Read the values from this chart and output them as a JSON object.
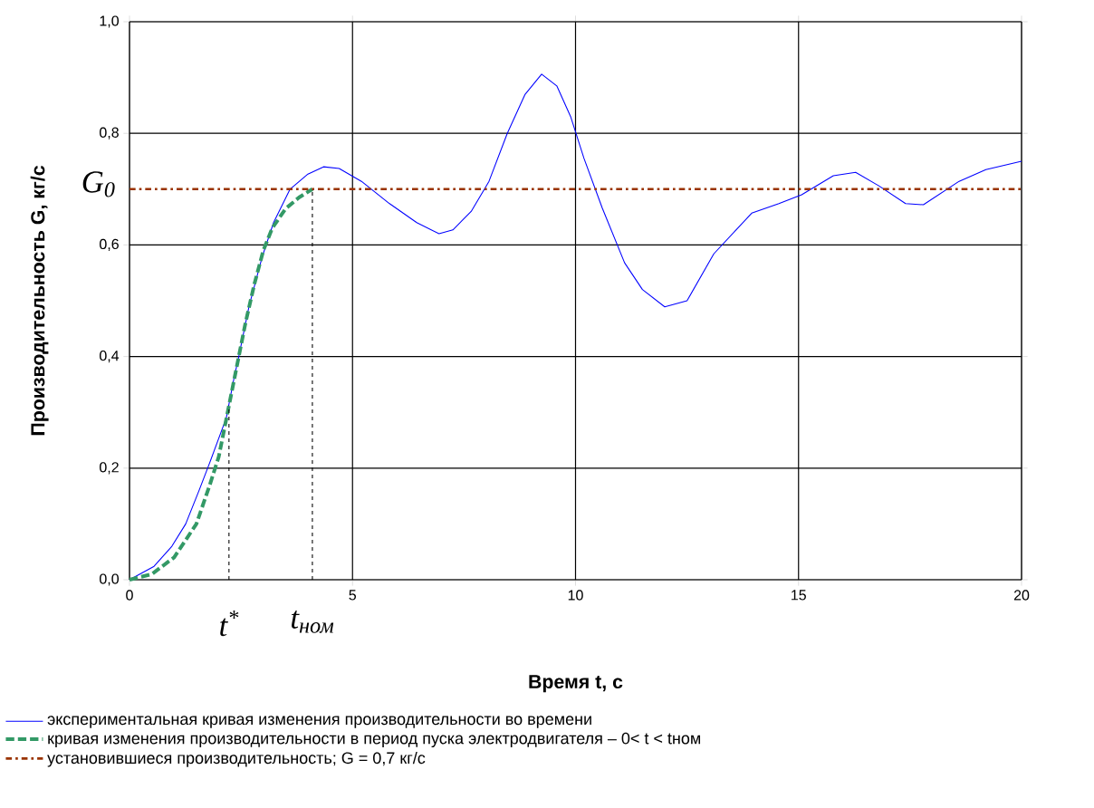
{
  "chart_data": {
    "type": "line",
    "xlabel": "Время t, с",
    "ylabel": "Производительность G, кг/с",
    "xlim": [
      0,
      20
    ],
    "ylim": [
      0,
      1
    ],
    "xticks": [
      0,
      5,
      10,
      15,
      20
    ],
    "yticks": [
      {
        "value": 0,
        "label": "0,0"
      },
      {
        "value": 0.2,
        "label": "0,2"
      },
      {
        "value": 0.4,
        "label": "0,4"
      },
      {
        "value": 0.6,
        "label": "0,6"
      },
      {
        "value": 0.8,
        "label": "0,8"
      },
      {
        "value": 1,
        "label": "1,0"
      }
    ],
    "grid": true,
    "legend": "bottom",
    "series": [
      {
        "name": "экспериментальная кривая изменения производительности во времени",
        "color": "#0000ff",
        "line_style": "solid",
        "x": [
          0,
          0.55,
          0.95,
          1.26,
          1.56,
          1.8,
          2.17,
          2.34,
          2.45,
          2.68,
          2.98,
          3.23,
          3.6,
          4.0,
          4.35,
          4.7,
          5.2,
          5.83,
          6.44,
          6.94,
          7.25,
          7.66,
          8.06,
          8.47,
          8.87,
          9.24,
          9.58,
          9.89,
          10.19,
          10.6,
          11.1,
          11.5,
          12.0,
          12.5,
          13.1,
          13.95,
          14.56,
          15.07,
          15.78,
          16.28,
          16.8,
          17.4,
          17.8,
          18.6,
          19.2,
          20
        ],
        "values": [
          0,
          0.024,
          0.06,
          0.1,
          0.16,
          0.21,
          0.29,
          0.36,
          0.4,
          0.49,
          0.58,
          0.64,
          0.7,
          0.727,
          0.74,
          0.737,
          0.714,
          0.674,
          0.64,
          0.62,
          0.627,
          0.66,
          0.714,
          0.8,
          0.87,
          0.906,
          0.885,
          0.83,
          0.755,
          0.666,
          0.568,
          0.52,
          0.489,
          0.5,
          0.584,
          0.657,
          0.674,
          0.69,
          0.724,
          0.73,
          0.706,
          0.674,
          0.672,
          0.714,
          0.735,
          0.75
        ]
      },
      {
        "name": "кривая изменения производительности в период пуска электродвигателя –  0< t < tном",
        "color": "#339966",
        "line_style": "dashed",
        "x": [
          0,
          0.5,
          1,
          1.5,
          1.8,
          2,
          2.2,
          2.4,
          2.6,
          2.8,
          3,
          3.2,
          3.5,
          3.8,
          4.1
        ],
        "values": [
          0,
          0.01,
          0.04,
          0.1,
          0.17,
          0.22,
          0.3,
          0.38,
          0.46,
          0.53,
          0.59,
          0.63,
          0.665,
          0.685,
          0.7
        ]
      },
      {
        "name": "установившиеся производительность; G = 0,7 кг/с",
        "color": "#993300",
        "line_style": "dashed",
        "x": [
          0,
          20
        ],
        "values": [
          0.7,
          0.7
        ]
      }
    ],
    "ref_lines": [
      {
        "axis": "x",
        "value": 2.23,
        "label": "t$^{*}$",
        "color": "#000000",
        "line_style": "dashed"
      },
      {
        "axis": "x",
        "value": 4.1,
        "label": "t$_{ном}$",
        "color": "#000000",
        "line_style": "dashed"
      }
    ],
    "annotations": [
      {
        "text": "G$_{0}$",
        "x": 0,
        "y": 0.7
      }
    ]
  }
}
